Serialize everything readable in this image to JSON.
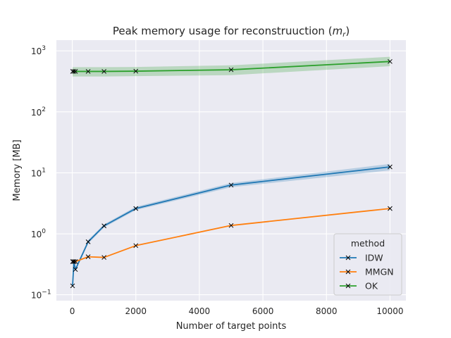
{
  "chart_data": {
    "type": "line",
    "title_prefix": "Peak memory usage for reconstruuction (",
    "title_var": "m",
    "title_sub": "r",
    "title_suffix": ")",
    "xlabel": "Number of target points",
    "ylabel": "Memory [MB]",
    "yscale": "log",
    "xlim": [
      -500,
      10500
    ],
    "ylim": [
      0.08,
      1500
    ],
    "x_ticks": [
      0,
      2000,
      4000,
      6000,
      8000,
      10000
    ],
    "x_tick_labels": [
      "0",
      "2000",
      "4000",
      "6000",
      "8000",
      "10000"
    ],
    "y_ticks": [
      0.1,
      1,
      10,
      100,
      1000
    ],
    "y_tick_labels": [
      {
        "base": "10",
        "exp": "−1"
      },
      {
        "base": "10",
        "exp": "0"
      },
      {
        "base": "10",
        "exp": "1"
      },
      {
        "base": "10",
        "exp": "2"
      },
      {
        "base": "10",
        "exp": "3"
      }
    ],
    "grid": true,
    "legend_title": "method",
    "legend_position": "lower-right",
    "series": [
      {
        "name": "IDW",
        "color": "#1f77b4",
        "x": [
          10,
          50,
          100,
          500,
          1000,
          2000,
          5000,
          10000
        ],
        "values": [
          0.14,
          0.35,
          0.26,
          0.74,
          1.35,
          2.6,
          6.3,
          12.5
        ],
        "band_lower": [
          0.13,
          0.33,
          0.245,
          0.69,
          1.27,
          2.45,
          5.8,
          11.0
        ],
        "band_upper": [
          0.15,
          0.37,
          0.275,
          0.79,
          1.43,
          2.78,
          6.8,
          14.0
        ]
      },
      {
        "name": "MMGN",
        "color": "#ff7f0e",
        "x": [
          10,
          50,
          100,
          500,
          1000,
          2000,
          5000,
          10000
        ],
        "values": [
          0.35,
          0.35,
          0.35,
          0.42,
          0.41,
          0.64,
          1.37,
          2.6
        ],
        "band_lower": null,
        "band_upper": null
      },
      {
        "name": "OK",
        "color": "#2ca02c",
        "x": [
          10,
          50,
          100,
          500,
          1000,
          2000,
          5000,
          10000
        ],
        "values": [
          460,
          460,
          460,
          460,
          460,
          465,
          490,
          670
        ],
        "band_lower": [
          380,
          380,
          380,
          380,
          380,
          385,
          400,
          560
        ],
        "band_upper": [
          540,
          540,
          540,
          540,
          540,
          545,
          580,
          800
        ]
      }
    ]
  }
}
